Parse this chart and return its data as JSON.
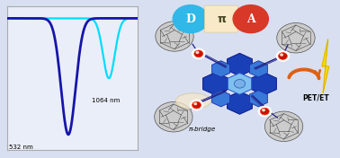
{
  "background_color": "#d8dff0",
  "plot_bg": "#eaeef8",
  "line1_color": "#1515aa",
  "line2_color": "#00ddff",
  "label_1064": "1064 nm",
  "label_532": "532 nm",
  "D_color": "#30b8e8",
  "pi_color": "#f8eac8",
  "A_color": "#d83828",
  "D_text": "D",
  "pi_text": "π",
  "A_text": "A",
  "pet_et_text": "PET/ET",
  "pi_bridge_text": "π-bridge",
  "arrow_color": "#e06010",
  "lightning_color": "#f8d800",
  "core_dark_blue": "#1a40b8",
  "core_med_blue": "#3878d8",
  "core_light_blue": "#80c0f0",
  "fullerene_dark": "#505050",
  "fullerene_mid": "#888888",
  "fullerene_light": "#cccccc",
  "connector_red": "#cc1100",
  "connector_glow": "#ffffff",
  "bridge_line_color": "#222288",
  "pi_bridge_ellipse": "#f5e8cc"
}
